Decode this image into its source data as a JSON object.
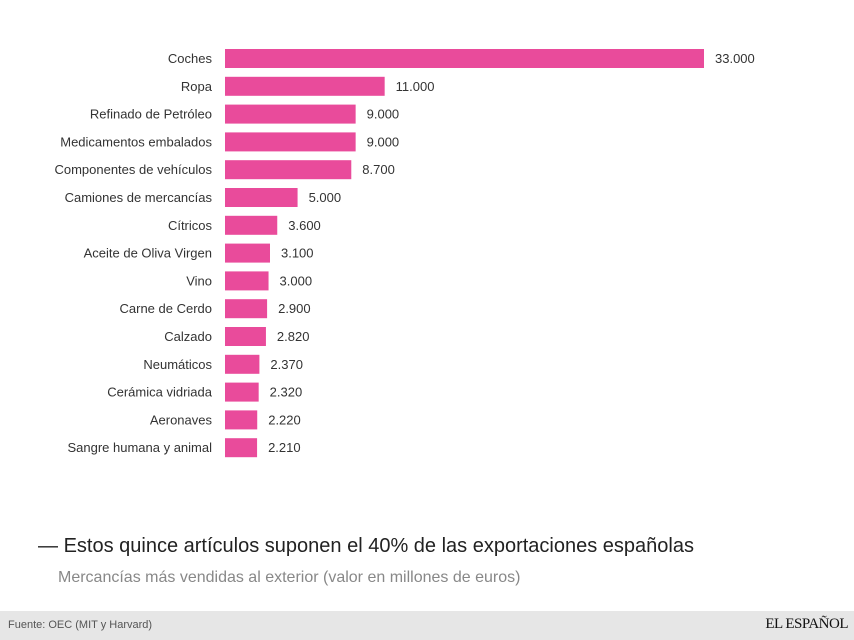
{
  "chart_data": {
    "type": "bar",
    "orientation": "horizontal",
    "title": "Estos quince artículos suponen el 40% de las exportaciones españolas",
    "title_prefix": "—",
    "subtitle": "Mercancías más vendidas al exterior (valor en millones de euros)",
    "categories": [
      "Coches",
      "Ropa",
      "Refinado de Petróleo",
      "Medicamentos embalados",
      "Componentes de vehículos",
      "Camiones de mercancías",
      "Cítricos",
      "Aceite de Oliva Virgen",
      "Vino",
      "Carne de Cerdo",
      "Calzado",
      "Neumáticos",
      "Cerámica vidriada",
      "Aeronaves",
      "Sangre humana y animal"
    ],
    "values": [
      33000,
      11000,
      9000,
      9000,
      8700,
      5000,
      3600,
      3100,
      3000,
      2900,
      2820,
      2370,
      2320,
      2220,
      2210
    ],
    "value_labels": [
      "33.000",
      "11.000",
      "9.000",
      "9.000",
      "8.700",
      "5.000",
      "3.600",
      "3.100",
      "3.000",
      "2.900",
      "2.820",
      "2.370",
      "2.320",
      "2.220",
      "2.210"
    ],
    "xlim": [
      0,
      33000
    ],
    "color": "#e94b9b",
    "grid": false
  },
  "footer": {
    "source": "Fuente: OEC (MIT y Harvard)",
    "logo": "EL ESPAÑOL"
  }
}
